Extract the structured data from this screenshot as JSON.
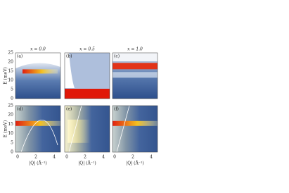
{
  "figure": {
    "y_label": "E (meV)",
    "x_label": "|Q| (Å⁻¹)",
    "y_ticks": [
      "0",
      "5",
      "10",
      "15",
      "20",
      "25"
    ],
    "x_ticks": [
      "0",
      "2",
      "4"
    ],
    "top_panels": [
      {
        "label": "(a)",
        "title": "x = 0.0"
      },
      {
        "label": "(b)",
        "title": "x = 0.5"
      },
      {
        "label": "(c)",
        "title": "x = 1.0"
      }
    ],
    "bottom_panels": [
      {
        "label": "(d)"
      },
      {
        "label": "(e)"
      },
      {
        "label": "(f)"
      }
    ]
  }
}
